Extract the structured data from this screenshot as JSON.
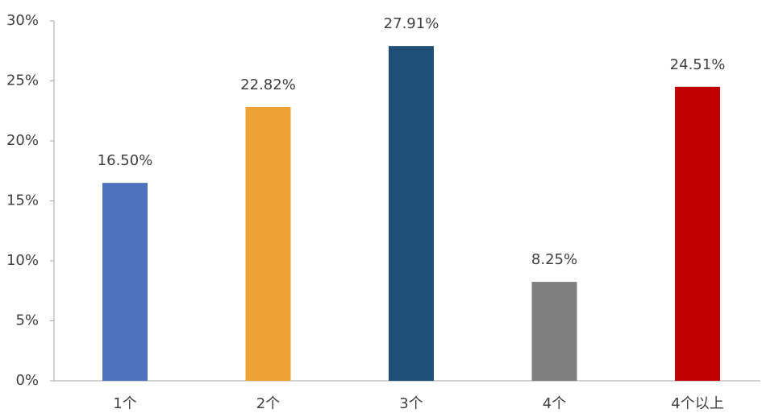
{
  "chart_data": {
    "type": "bar",
    "categories": [
      "1个",
      "2个",
      "3个",
      "4个",
      "4个以上"
    ],
    "values": [
      16.5,
      22.82,
      27.91,
      8.25,
      24.51
    ],
    "value_labels": [
      "16.50%",
      "22.82%",
      "27.91%",
      "8.25%",
      "24.51%"
    ],
    "colors": [
      "#4f72be",
      "#eea236",
      "#1f4e79",
      "#7f7f7f",
      "#c00000"
    ],
    "ylim": [
      0,
      30
    ],
    "yticks": [
      {
        "value": 0,
        "label": "0%"
      },
      {
        "value": 5,
        "label": "5%"
      },
      {
        "value": 10,
        "label": "10%"
      },
      {
        "value": 15,
        "label": "15%"
      },
      {
        "value": 20,
        "label": "20%"
      },
      {
        "value": 25,
        "label": "25%"
      },
      {
        "value": 30,
        "label": "30%"
      }
    ],
    "grid": false
  }
}
